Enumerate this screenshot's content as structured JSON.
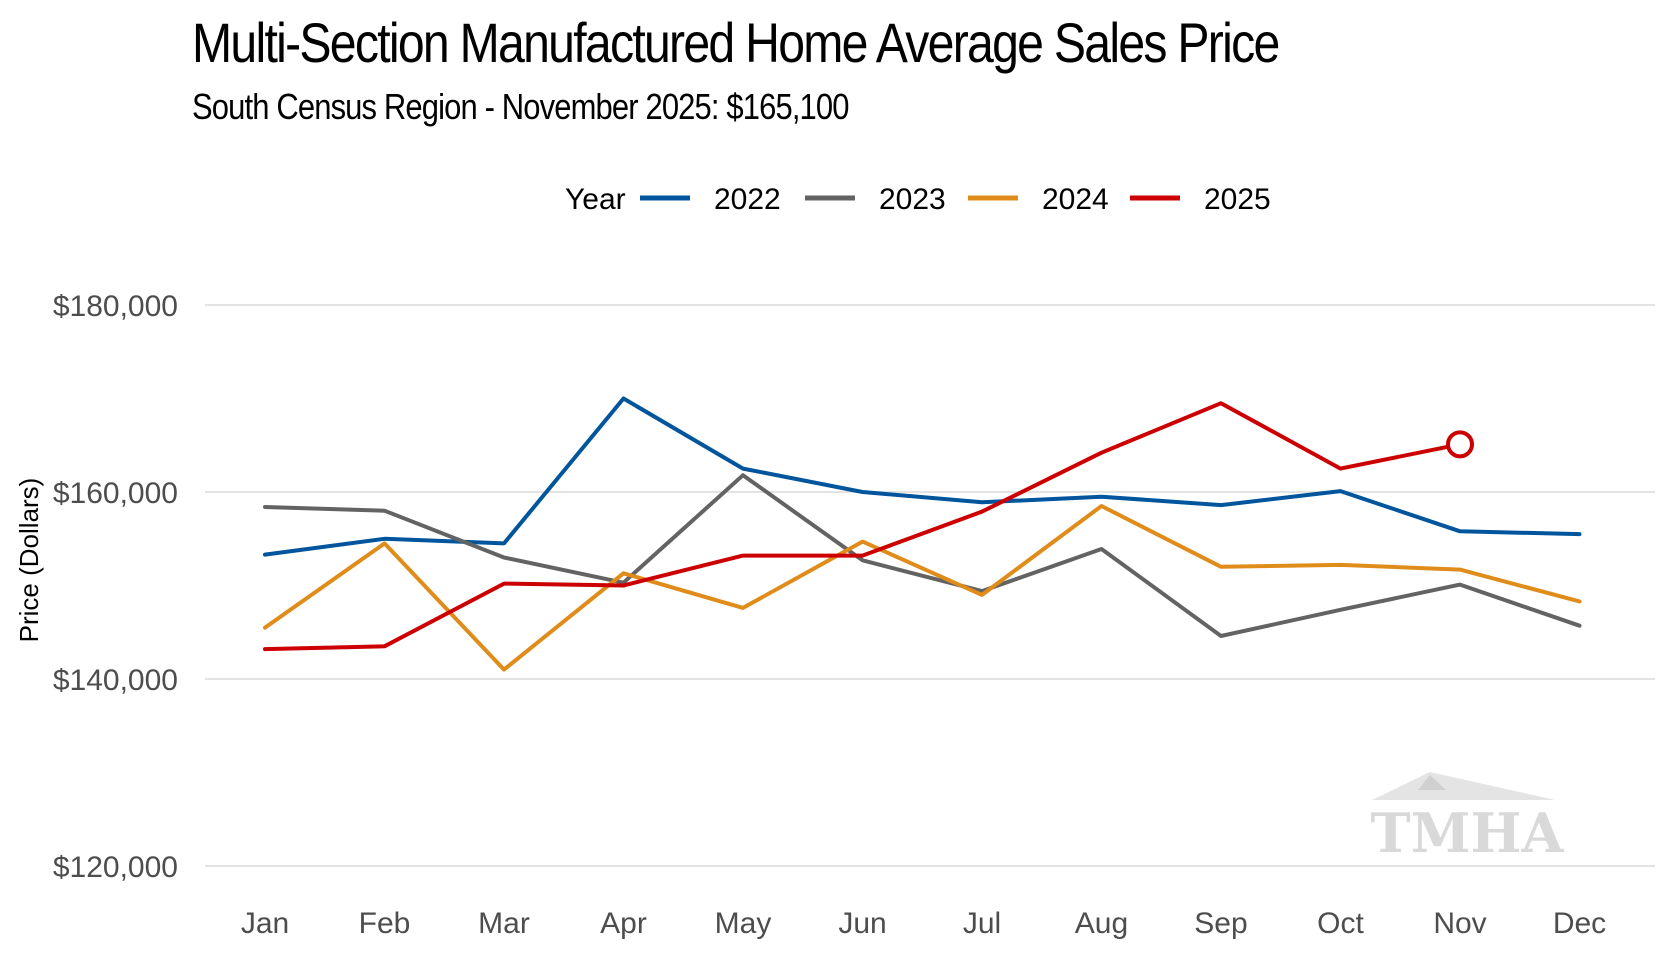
{
  "title": "Multi-Section Manufactured Home Average Sales Price",
  "subtitle": "South Census Region - November 2025: $165,100",
  "watermark": "TMHA",
  "colors": {
    "2022": "#00559c",
    "2023": "#636363",
    "2024": "#e08c1a",
    "2025": "#cc0000",
    "grid": "#e3e3e3"
  },
  "chart_data": {
    "type": "line",
    "title": "Multi-Section Manufactured Home Average Sales Price",
    "subtitle": "South Census Region - November 2025: $165,100",
    "xlabel": "",
    "ylabel": "Price (Dollars)",
    "ylim": [
      120000,
      180000
    ],
    "yticks": [
      120000,
      140000,
      160000,
      180000
    ],
    "ytick_labels": [
      "$120,000",
      "$140,000",
      "$160,000",
      "$180,000"
    ],
    "categories": [
      "Jan",
      "Feb",
      "Mar",
      "Apr",
      "May",
      "Jun",
      "Jul",
      "Aug",
      "Sep",
      "Oct",
      "Nov",
      "Dec"
    ],
    "legend_title": "Year",
    "legend_position": "top",
    "grid": "horizontal",
    "series": [
      {
        "name": "2022",
        "values": [
          153300,
          155000,
          154500,
          170000,
          162500,
          160000,
          158900,
          159500,
          158600,
          160100,
          155800,
          155500
        ]
      },
      {
        "name": "2023",
        "values": [
          158400,
          158000,
          153000,
          150300,
          161800,
          152700,
          149400,
          153900,
          144600,
          147400,
          150100,
          145700
        ]
      },
      {
        "name": "2024",
        "values": [
          145500,
          154500,
          141000,
          151300,
          147600,
          154700,
          149000,
          158500,
          152000,
          152200,
          151700,
          148300
        ]
      },
      {
        "name": "2025",
        "values": [
          143200,
          143500,
          150200,
          150000,
          153200,
          153200,
          157900,
          164200,
          169500,
          162500,
          165100,
          null
        ]
      }
    ],
    "highlight": {
      "series": "2025",
      "category": "Nov",
      "value": 165100,
      "marker": "open-circle"
    }
  }
}
